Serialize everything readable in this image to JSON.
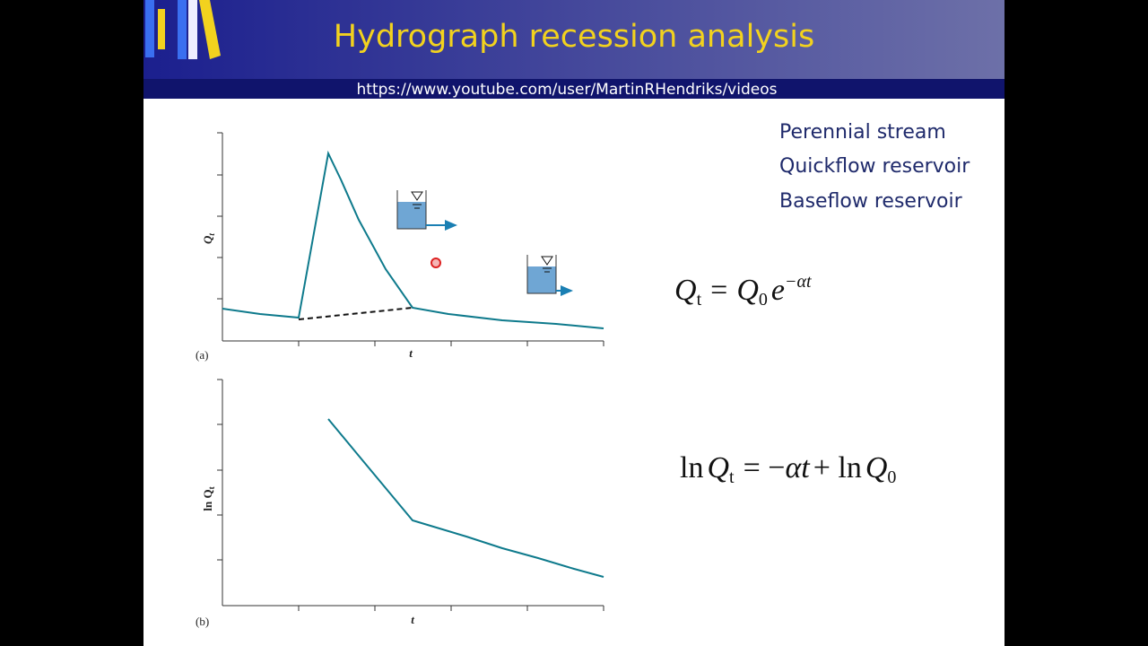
{
  "header": {
    "title": "Hydrograph recession analysis",
    "url": "https://www.youtube.com/user/MartinRHendriks/videos"
  },
  "bullets": [
    "Perennial stream",
    "Quickflow reservoir",
    "Baseflow reservoir"
  ],
  "panel_a": {
    "label": "(a)",
    "x_label": "t",
    "y_label": [
      "Q",
      "t"
    ]
  },
  "panel_b": {
    "label": "(b)",
    "x_label": "t",
    "y_label": [
      "ln Q",
      "t"
    ]
  },
  "equation_1": [
    "Q",
    "t",
    "=",
    "Q",
    "0",
    "e",
    "−αt"
  ],
  "equation_2": [
    "ln",
    "Q",
    "t",
    "= −",
    "αt",
    "+ ln",
    "Q",
    "0"
  ]
}
